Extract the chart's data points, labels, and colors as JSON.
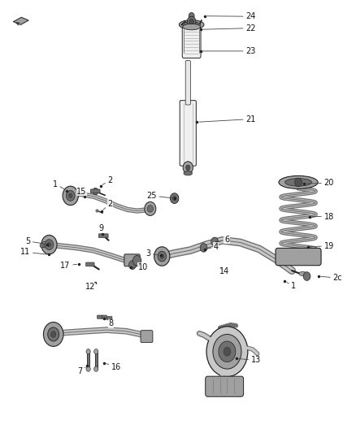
{
  "bg_color": "#ffffff",
  "fig_width": 4.38,
  "fig_height": 5.33,
  "dpi": 100,
  "lc": "#222222",
  "fs": 7.0,
  "gray1": "#c8c8c8",
  "gray2": "#a0a0a0",
  "gray3": "#707070",
  "gray4": "#505050",
  "labels": {
    "24": [
      0.69,
      0.962,
      0.575,
      0.963,
      "left"
    ],
    "22": [
      0.69,
      0.935,
      0.563,
      0.932,
      "left"
    ],
    "23": [
      0.69,
      0.882,
      0.563,
      0.882,
      "left"
    ],
    "21": [
      0.69,
      0.725,
      0.553,
      0.718,
      "left"
    ],
    "20": [
      0.91,
      0.577,
      0.855,
      0.576,
      "left"
    ],
    "18": [
      0.91,
      0.5,
      0.87,
      0.5,
      "left"
    ],
    "19": [
      0.91,
      0.432,
      0.865,
      0.43,
      "left"
    ],
    "25": [
      0.44,
      0.548,
      0.49,
      0.542,
      "right"
    ],
    "6": [
      0.63,
      0.447,
      0.607,
      0.44,
      "left"
    ],
    "4": [
      0.6,
      0.43,
      0.575,
      0.424,
      "left"
    ],
    "3": [
      0.423,
      0.415,
      0.452,
      0.41,
      "right"
    ],
    "14": [
      0.617,
      0.373,
      0.62,
      0.38,
      "left"
    ],
    "1": [
      0.162,
      0.575,
      0.188,
      0.56,
      "right"
    ],
    "15": [
      0.215,
      0.558,
      0.237,
      0.546,
      "left"
    ],
    "2a": [
      0.302,
      0.583,
      0.282,
      0.571,
      "left"
    ],
    "2b": [
      0.302,
      0.53,
      0.285,
      0.512,
      "left"
    ],
    "2c": [
      0.935,
      0.358,
      0.895,
      0.362,
      "left"
    ],
    "9": [
      0.278,
      0.472,
      0.288,
      0.46,
      "left"
    ],
    "5": [
      0.085,
      0.443,
      0.133,
      0.436,
      "right"
    ],
    "11": [
      0.085,
      0.418,
      0.138,
      0.412,
      "right"
    ],
    "17": [
      0.198,
      0.387,
      0.222,
      0.39,
      "right"
    ],
    "10": [
      0.388,
      0.383,
      0.368,
      0.382,
      "left"
    ],
    "12": [
      0.268,
      0.337,
      0.268,
      0.347,
      "right"
    ],
    "8": [
      0.305,
      0.253,
      0.293,
      0.265,
      "left"
    ],
    "16": [
      0.312,
      0.152,
      0.293,
      0.162,
      "left"
    ],
    "7": [
      0.232,
      0.143,
      0.245,
      0.155,
      "right"
    ],
    "13": [
      0.705,
      0.168,
      0.665,
      0.172,
      "left"
    ],
    "1b": [
      0.818,
      0.34,
      0.8,
      0.35,
      "left"
    ]
  }
}
